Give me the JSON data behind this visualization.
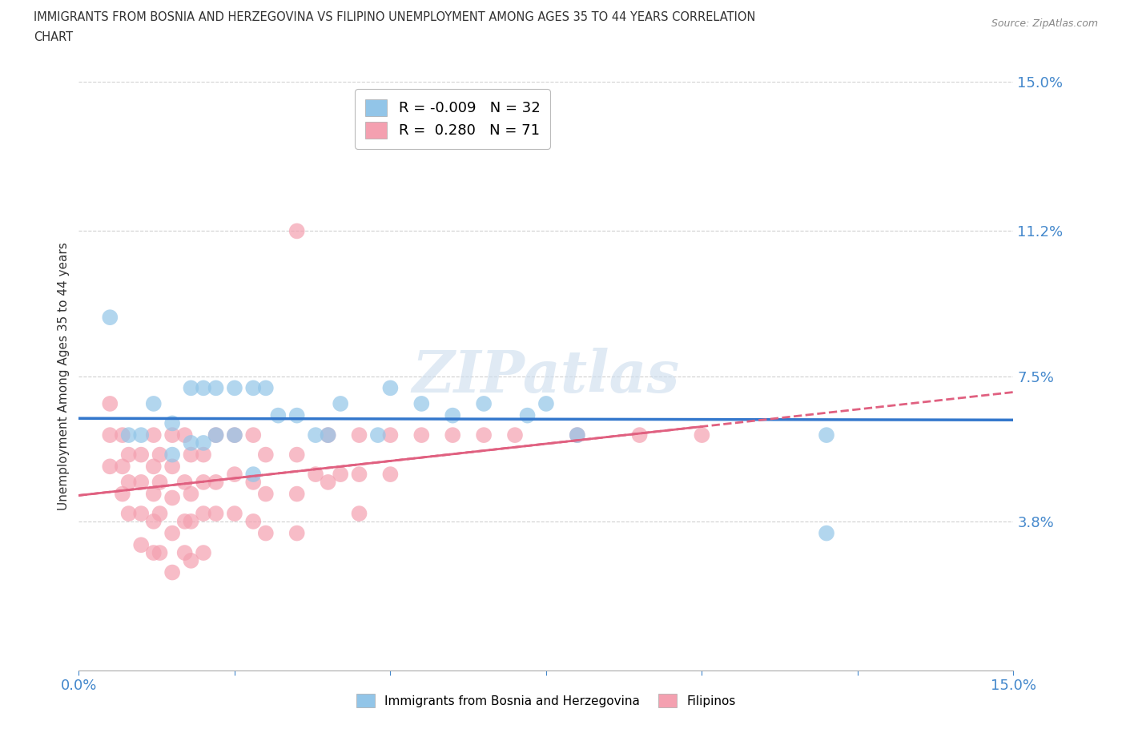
{
  "title_line1": "IMMIGRANTS FROM BOSNIA AND HERZEGOVINA VS FILIPINO UNEMPLOYMENT AMONG AGES 35 TO 44 YEARS CORRELATION",
  "title_line2": "CHART",
  "source": "Source: ZipAtlas.com",
  "ylabel": "Unemployment Among Ages 35 to 44 years",
  "xlim": [
    0.0,
    0.15
  ],
  "ylim": [
    0.0,
    0.15
  ],
  "yticks": [
    0.038,
    0.075,
    0.112,
    0.15
  ],
  "ytick_labels": [
    "3.8%",
    "7.5%",
    "11.2%",
    "15.0%"
  ],
  "r_bosnia": -0.009,
  "n_bosnia": 32,
  "r_filipino": 0.28,
  "n_filipino": 71,
  "bosnia_color": "#92C5E8",
  "filipino_color": "#F4A0B0",
  "watermark_text": "ZIPatlas",
  "background_color": "#ffffff",
  "grid_color": "#d0d0d0",
  "bosnia_scatter": [
    [
      0.005,
      0.09
    ],
    [
      0.008,
      0.06
    ],
    [
      0.01,
      0.06
    ],
    [
      0.012,
      0.068
    ],
    [
      0.015,
      0.063
    ],
    [
      0.015,
      0.055
    ],
    [
      0.018,
      0.072
    ],
    [
      0.018,
      0.058
    ],
    [
      0.02,
      0.072
    ],
    [
      0.02,
      0.058
    ],
    [
      0.022,
      0.072
    ],
    [
      0.022,
      0.06
    ],
    [
      0.025,
      0.072
    ],
    [
      0.025,
      0.06
    ],
    [
      0.028,
      0.072
    ],
    [
      0.03,
      0.072
    ],
    [
      0.032,
      0.065
    ],
    [
      0.035,
      0.065
    ],
    [
      0.038,
      0.06
    ],
    [
      0.04,
      0.06
    ],
    [
      0.042,
      0.068
    ],
    [
      0.048,
      0.06
    ],
    [
      0.05,
      0.072
    ],
    [
      0.055,
      0.068
    ],
    [
      0.06,
      0.065
    ],
    [
      0.065,
      0.068
    ],
    [
      0.072,
      0.065
    ],
    [
      0.075,
      0.068
    ],
    [
      0.08,
      0.06
    ],
    [
      0.028,
      0.05
    ],
    [
      0.12,
      0.035
    ],
    [
      0.12,
      0.06
    ]
  ],
  "filipino_scatter": [
    [
      0.005,
      0.068
    ],
    [
      0.005,
      0.06
    ],
    [
      0.005,
      0.052
    ],
    [
      0.007,
      0.06
    ],
    [
      0.007,
      0.052
    ],
    [
      0.007,
      0.045
    ],
    [
      0.008,
      0.055
    ],
    [
      0.008,
      0.048
    ],
    [
      0.008,
      0.04
    ],
    [
      0.01,
      0.055
    ],
    [
      0.01,
      0.048
    ],
    [
      0.01,
      0.04
    ],
    [
      0.01,
      0.032
    ],
    [
      0.012,
      0.06
    ],
    [
      0.012,
      0.052
    ],
    [
      0.012,
      0.045
    ],
    [
      0.012,
      0.038
    ],
    [
      0.012,
      0.03
    ],
    [
      0.013,
      0.055
    ],
    [
      0.013,
      0.048
    ],
    [
      0.013,
      0.04
    ],
    [
      0.013,
      0.03
    ],
    [
      0.015,
      0.06
    ],
    [
      0.015,
      0.052
    ],
    [
      0.015,
      0.044
    ],
    [
      0.015,
      0.035
    ],
    [
      0.015,
      0.025
    ],
    [
      0.017,
      0.06
    ],
    [
      0.017,
      0.048
    ],
    [
      0.017,
      0.038
    ],
    [
      0.017,
      0.03
    ],
    [
      0.018,
      0.055
    ],
    [
      0.018,
      0.045
    ],
    [
      0.018,
      0.038
    ],
    [
      0.018,
      0.028
    ],
    [
      0.02,
      0.055
    ],
    [
      0.02,
      0.048
    ],
    [
      0.02,
      0.04
    ],
    [
      0.02,
      0.03
    ],
    [
      0.022,
      0.06
    ],
    [
      0.022,
      0.048
    ],
    [
      0.022,
      0.04
    ],
    [
      0.025,
      0.06
    ],
    [
      0.025,
      0.05
    ],
    [
      0.025,
      0.04
    ],
    [
      0.028,
      0.06
    ],
    [
      0.028,
      0.048
    ],
    [
      0.028,
      0.038
    ],
    [
      0.03,
      0.055
    ],
    [
      0.03,
      0.045
    ],
    [
      0.03,
      0.035
    ],
    [
      0.035,
      0.055
    ],
    [
      0.035,
      0.045
    ],
    [
      0.035,
      0.035
    ],
    [
      0.038,
      0.05
    ],
    [
      0.04,
      0.06
    ],
    [
      0.04,
      0.048
    ],
    [
      0.042,
      0.05
    ],
    [
      0.045,
      0.06
    ],
    [
      0.045,
      0.05
    ],
    [
      0.045,
      0.04
    ],
    [
      0.05,
      0.06
    ],
    [
      0.05,
      0.05
    ],
    [
      0.055,
      0.06
    ],
    [
      0.06,
      0.06
    ],
    [
      0.065,
      0.06
    ],
    [
      0.07,
      0.06
    ],
    [
      0.08,
      0.06
    ],
    [
      0.09,
      0.06
    ],
    [
      0.1,
      0.06
    ],
    [
      0.035,
      0.112
    ]
  ]
}
